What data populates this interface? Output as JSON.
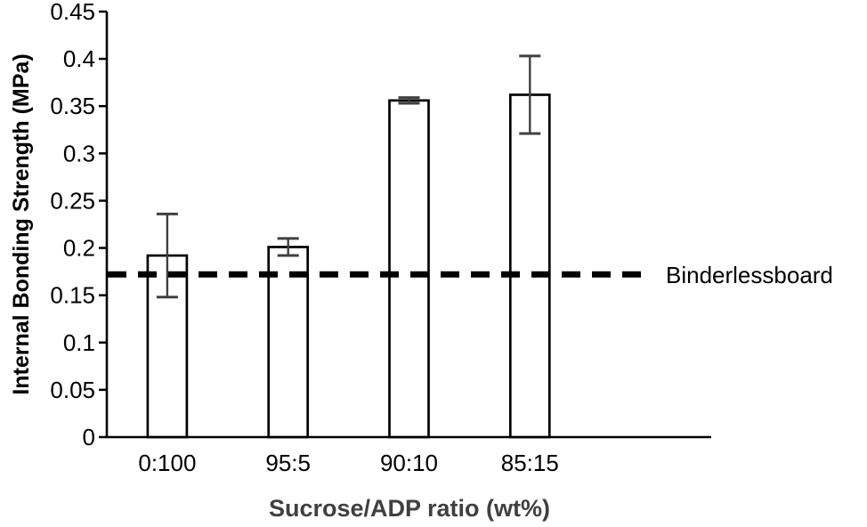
{
  "chart_data": {
    "type": "bar",
    "title": "",
    "xlabel": "Sucrose/ADP ratio (wt%)",
    "ylabel": "Internal Bonding Strength (MPa)",
    "categories": [
      "0:100",
      "95:5",
      "90:10",
      "85:15"
    ],
    "values": [
      0.192,
      0.201,
      0.356,
      0.362
    ],
    "error_bars": [
      0.044,
      0.009,
      0.003,
      0.041
    ],
    "ylim": [
      0,
      0.45
    ],
    "ytick_step": 0.05,
    "ytick_labels": [
      "0",
      "0.05",
      "0.1",
      "0.15",
      "0.2",
      "0.25",
      "0.3",
      "0.35",
      "0.4",
      "0.45"
    ],
    "grid": false,
    "legend_position": "none",
    "bar_fill": "#ffffff",
    "bar_stroke": "#000000",
    "error_color": "#404040",
    "axis_color": "#000000",
    "reference_line": {
      "value": 0.172,
      "label": "Binderlessboard",
      "style": "dashed",
      "color": "#000000"
    }
  }
}
